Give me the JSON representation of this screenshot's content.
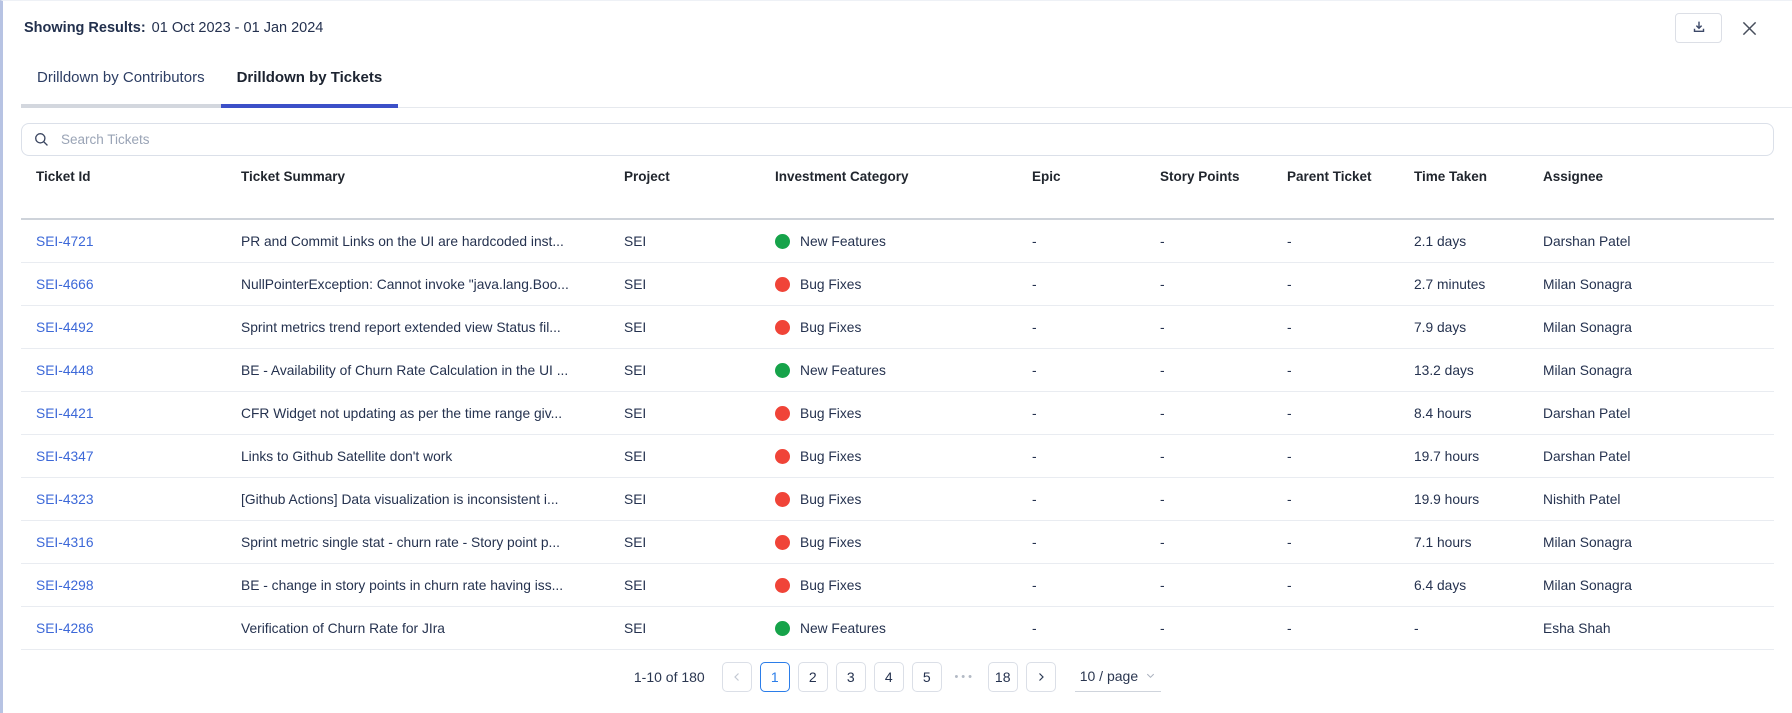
{
  "header": {
    "results_label": "Showing Results:",
    "date_range": "01 Oct 2023 - 01 Jan 2024"
  },
  "icons": {
    "download": "arrow-down-into-tray",
    "close": "x-mark",
    "search": "magnifier",
    "prev": "chevron-left",
    "next": "chevron-right",
    "page_size_caret": "chevron-down",
    "category_dot": "filled-circle"
  },
  "tabs": [
    {
      "label": "Drilldown by Contributors",
      "active": false
    },
    {
      "label": "Drilldown by Tickets",
      "active": true
    }
  ],
  "search": {
    "placeholder": "Search Tickets",
    "value": ""
  },
  "table": {
    "columns": [
      "Ticket Id",
      "Ticket Summary",
      "Project",
      "Investment Category",
      "Epic",
      "Story Points",
      "Parent Ticket",
      "Time Taken",
      "Assignee"
    ],
    "rows": [
      {
        "id": "SEI-4721",
        "summary": "PR and Commit Links on the UI are hardcoded inst...",
        "project": "SEI",
        "category": "New Features",
        "category_color": "#16a34a",
        "epic": "-",
        "story_points": "-",
        "parent_ticket": "-",
        "time_taken": "2.1 days",
        "assignee": "Darshan Patel"
      },
      {
        "id": "SEI-4666",
        "summary": "NullPointerException: Cannot invoke \"java.lang.Boo...",
        "project": "SEI",
        "category": "Bug Fixes",
        "category_color": "#f04438",
        "epic": "-",
        "story_points": "-",
        "parent_ticket": "-",
        "time_taken": "2.7 minutes",
        "assignee": "Milan Sonagra"
      },
      {
        "id": "SEI-4492",
        "summary": "Sprint metrics trend report extended view Status fil...",
        "project": "SEI",
        "category": "Bug Fixes",
        "category_color": "#f04438",
        "epic": "-",
        "story_points": "-",
        "parent_ticket": "-",
        "time_taken": "7.9 days",
        "assignee": "Milan Sonagra"
      },
      {
        "id": "SEI-4448",
        "summary": "BE - Availability of Churn Rate Calculation in the UI ...",
        "project": "SEI",
        "category": "New Features",
        "category_color": "#16a34a",
        "epic": "-",
        "story_points": "-",
        "parent_ticket": "-",
        "time_taken": "13.2 days",
        "assignee": "Milan Sonagra"
      },
      {
        "id": "SEI-4421",
        "summary": "CFR Widget not updating as per the time range giv...",
        "project": "SEI",
        "category": "Bug Fixes",
        "category_color": "#f04438",
        "epic": "-",
        "story_points": "-",
        "parent_ticket": "-",
        "time_taken": "8.4 hours",
        "assignee": "Darshan Patel"
      },
      {
        "id": "SEI-4347",
        "summary": "Links to Github Satellite don't work",
        "project": "SEI",
        "category": "Bug Fixes",
        "category_color": "#f04438",
        "epic": "-",
        "story_points": "-",
        "parent_ticket": "-",
        "time_taken": "19.7 hours",
        "assignee": "Darshan Patel"
      },
      {
        "id": "SEI-4323",
        "summary": "[Github Actions] Data visualization is inconsistent i...",
        "project": "SEI",
        "category": "Bug Fixes",
        "category_color": "#f04438",
        "epic": "-",
        "story_points": "-",
        "parent_ticket": "-",
        "time_taken": "19.9 hours",
        "assignee": "Nishith Patel"
      },
      {
        "id": "SEI-4316",
        "summary": "Sprint metric single stat - churn rate - Story point p...",
        "project": "SEI",
        "category": "Bug Fixes",
        "category_color": "#f04438",
        "epic": "-",
        "story_points": "-",
        "parent_ticket": "-",
        "time_taken": "7.1 hours",
        "assignee": "Milan Sonagra"
      },
      {
        "id": "SEI-4298",
        "summary": "BE - change in story points in churn rate having iss...",
        "project": "SEI",
        "category": "Bug Fixes",
        "category_color": "#f04438",
        "epic": "-",
        "story_points": "-",
        "parent_ticket": "-",
        "time_taken": "6.4 days",
        "assignee": "Milan Sonagra"
      },
      {
        "id": "SEI-4286",
        "summary": "Verification of Churn Rate for JIra",
        "project": "SEI",
        "category": "New Features",
        "category_color": "#16a34a",
        "epic": "-",
        "story_points": "-",
        "parent_ticket": "-",
        "time_taken": "-",
        "assignee": "Esha Shah"
      }
    ]
  },
  "colors": {
    "accent_tab_blue": "#3c50c8",
    "link_blue": "#3c68d8",
    "active_page_blue": "#2b7de9",
    "new_features_green": "#16a34a",
    "bug_fixes_red": "#f04438",
    "panel_edge_blue": "#b7c3e3"
  },
  "pagination": {
    "range_text": "1-10 of 180",
    "pages": [
      "1",
      "2",
      "3",
      "4",
      "5"
    ],
    "ellipsis": "•••",
    "last_page": "18",
    "current_page": "1",
    "page_size": "10 / page"
  }
}
